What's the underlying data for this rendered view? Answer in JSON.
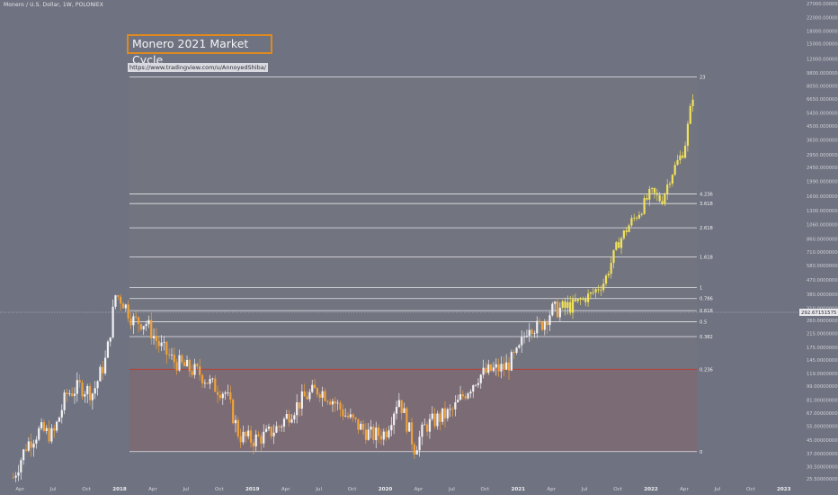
{
  "header": {
    "symbol_line": "Monero / U.S. Dollar, 1W, POLONIEX"
  },
  "annotations": {
    "title": "Monero 2021 Market Cycle",
    "url": "https://www.tradingview.com/u/AnnoyedShiba/"
  },
  "current_price": {
    "label": "292.67151575",
    "value": 292.67
  },
  "colors": {
    "background": "#6f7280",
    "up_candle": "#f2f2f4",
    "down_candle": "#f0a23a",
    "projection": "#f2e25a",
    "fib_zone": "#727480",
    "low_zone": "#7b6b74",
    "level_line": "#e6e6ea",
    "red_level": "#c0392b"
  },
  "chart_data": {
    "type": "candlestick",
    "scale": "log",
    "x_ticks": [
      "Apr",
      "Jul",
      "Oct",
      "2018",
      "Apr",
      "Jul",
      "Oct",
      "2019",
      "Apr",
      "Jul",
      "Oct",
      "2020",
      "Apr",
      "Jul",
      "Oct",
      "2021",
      "Apr",
      "Jul",
      "Oct",
      "2022",
      "Apr",
      "Jul",
      "Oct",
      "2023"
    ],
    "y_ticks": [
      "27000.00000000",
      "22000.00000000",
      "18000.00000000",
      "15000.00000000",
      "12000.00000000",
      "9800.00000000",
      "8050.00000000",
      "6650.00000000",
      "5450.00000000",
      "4500.00000000",
      "3650.00000000",
      "2950.00000000",
      "2450.00000000",
      "1990.00000000",
      "1600.00000000",
      "1300.00000000",
      "1060.00000000",
      "860.00000000",
      "710.00000000",
      "580.00000000",
      "470.00000000",
      "380.00000000",
      "310.00000000",
      "260.00000000",
      "215.00000000",
      "175.00000000",
      "145.00000000",
      "119.00000000",
      "99.00000000",
      "81.00000000",
      "67.00000000",
      "55.00000000",
      "45.00000000",
      "37.00000000",
      "30.50000000",
      "25.50000000"
    ],
    "fib_levels": [
      {
        "label": "23",
        "price": 9200
      },
      {
        "label": "4.236",
        "price": 1660
      },
      {
        "label": "3.618",
        "price": 1440
      },
      {
        "label": "2.618",
        "price": 1010
      },
      {
        "label": "1.618",
        "price": 660
      },
      {
        "label": "1",
        "price": 420
      },
      {
        "label": "0.786",
        "price": 358
      },
      {
        "label": "0.618",
        "price": 300
      },
      {
        "label": "0.5",
        "price": 255
      },
      {
        "label": "0.382",
        "price": 205
      },
      {
        "label": "0.236",
        "price": 127
      },
      {
        "label": "0",
        "price": 38
      }
    ],
    "weekly_close_path": [
      [
        2017.2,
        26
      ],
      [
        2017.3,
        42
      ],
      [
        2017.4,
        52
      ],
      [
        2017.5,
        48
      ],
      [
        2017.6,
        88
      ],
      [
        2017.7,
        98
      ],
      [
        2017.8,
        90
      ],
      [
        2017.9,
        150
      ],
      [
        2017.97,
        380
      ],
      [
        2018.02,
        350
      ],
      [
        2018.1,
        260
      ],
      [
        2018.2,
        250
      ],
      [
        2018.3,
        180
      ],
      [
        2018.4,
        145
      ],
      [
        2018.5,
        130
      ],
      [
        2018.6,
        120
      ],
      [
        2018.7,
        100
      ],
      [
        2018.8,
        90
      ],
      [
        2018.9,
        48
      ],
      [
        2019.0,
        45
      ],
      [
        2019.1,
        48
      ],
      [
        2019.2,
        55
      ],
      [
        2019.3,
        70
      ],
      [
        2019.4,
        85
      ],
      [
        2019.5,
        95
      ],
      [
        2019.6,
        82
      ],
      [
        2019.7,
        65
      ],
      [
        2019.8,
        55
      ],
      [
        2019.9,
        48
      ],
      [
        2020.0,
        50
      ],
      [
        2020.1,
        85
      ],
      [
        2020.22,
        40
      ],
      [
        2020.3,
        55
      ],
      [
        2020.4,
        62
      ],
      [
        2020.5,
        68
      ],
      [
        2020.6,
        90
      ],
      [
        2020.7,
        115
      ],
      [
        2020.8,
        125
      ],
      [
        2020.9,
        130
      ],
      [
        2021.0,
        160
      ],
      [
        2021.08,
        250
      ],
      [
        2021.15,
        230
      ],
      [
        2021.25,
        300
      ],
      [
        2021.35,
        310
      ],
      [
        2021.45,
        340
      ],
      [
        2021.55,
        380
      ],
      [
        2021.65,
        460
      ],
      [
        2021.75,
        800
      ],
      [
        2021.85,
        1100
      ],
      [
        2021.92,
        1300
      ],
      [
        2022.0,
        1700
      ],
      [
        2022.08,
        1500
      ],
      [
        2022.15,
        2200
      ],
      [
        2022.25,
        3200
      ],
      [
        2022.32,
        7500
      ]
    ]
  }
}
